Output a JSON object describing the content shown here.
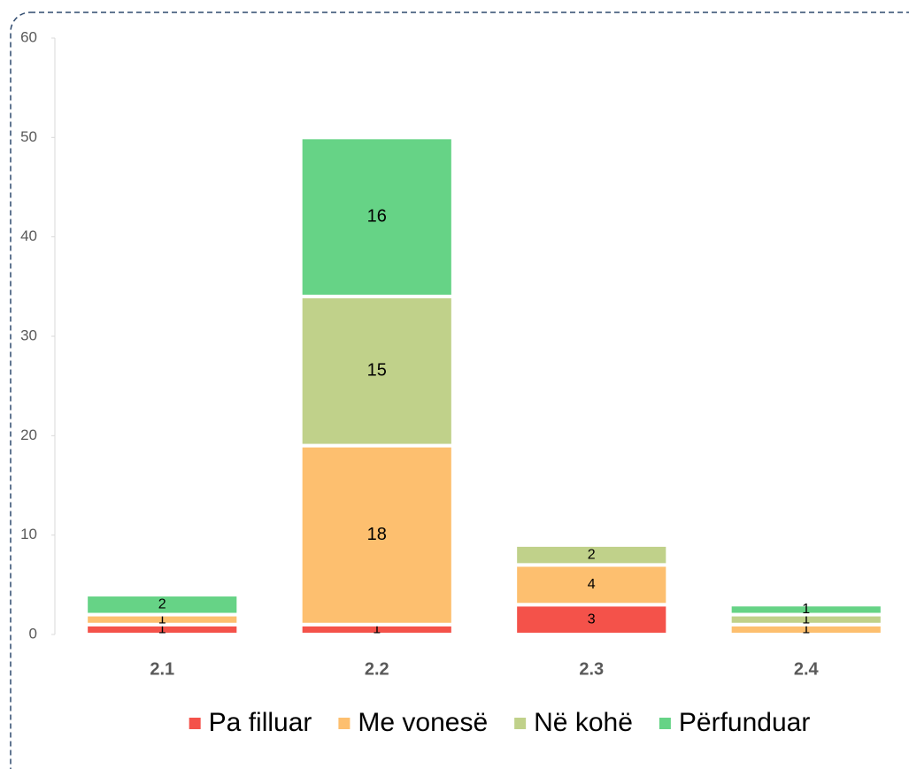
{
  "chart_data": {
    "type": "stacked_bar",
    "categories": [
      "2.1",
      "2.2",
      "2.3",
      "2.4"
    ],
    "series": [
      {
        "name": "Pa filluar",
        "color": "#f4524a",
        "values": [
          1,
          1,
          3,
          0
        ]
      },
      {
        "name": "Me vonesë",
        "color": "#fdbf6f",
        "values": [
          1,
          18,
          4,
          1
        ]
      },
      {
        "name": "Në kohë",
        "color": "#c0d18a",
        "values": [
          0,
          15,
          2,
          1
        ]
      },
      {
        "name": "Përfunduar",
        "color": "#66d386",
        "values": [
          2,
          16,
          0,
          1
        ]
      }
    ],
    "ylim": [
      0,
      60
    ],
    "yticks": [
      0,
      10,
      20,
      30,
      40,
      50,
      60
    ],
    "grid": false,
    "legend": "bottom"
  }
}
